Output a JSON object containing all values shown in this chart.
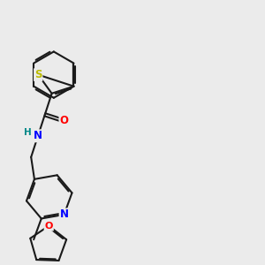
{
  "background_color": "#ebebeb",
  "bond_color": "#1a1a1a",
  "bond_width": 1.5,
  "atom_colors": {
    "O": "#ff0000",
    "N": "#0000ff",
    "S": "#bbbb00",
    "H": "#008888",
    "C": "#1a1a1a"
  },
  "font_size": 8.5
}
